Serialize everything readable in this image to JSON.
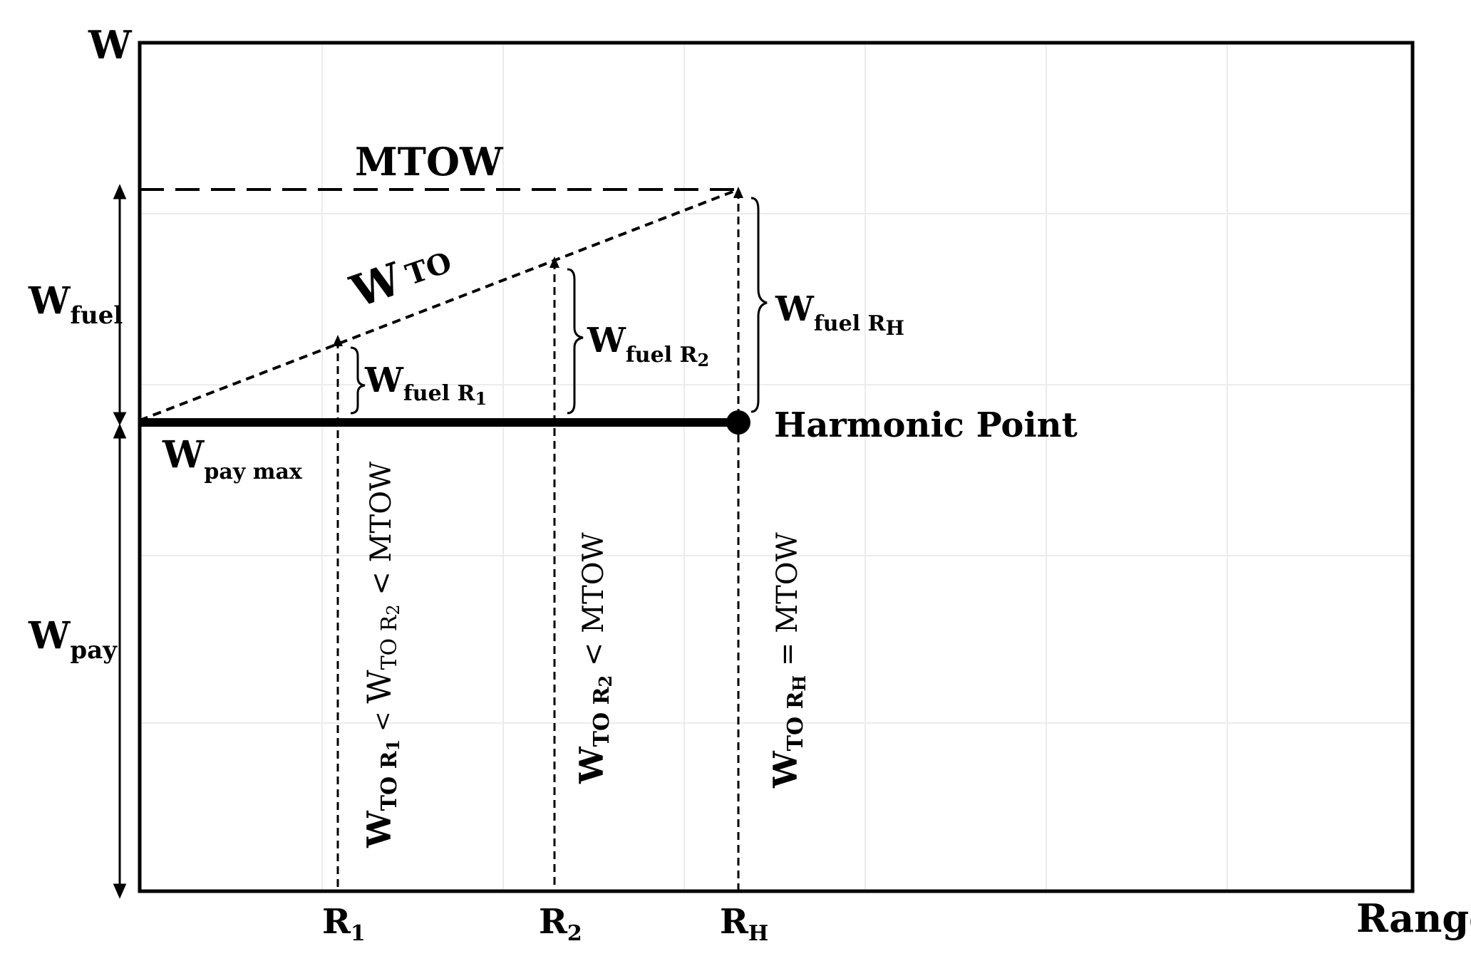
{
  "axes": {
    "y_label": "W",
    "x_label": "Range"
  },
  "lines": {
    "mtow": "MTOW",
    "wto_main": "W",
    "wto_sub": "TO"
  },
  "side_labels": {
    "fuel_main": "W",
    "fuel_sub": "fuel",
    "pay_main": "W",
    "pay_sub": "pay",
    "paymax_main": "W",
    "paymax_sub": "pay max"
  },
  "fuel_labels": {
    "r1_main": "W",
    "r1_sub": "fuel R",
    "r1_subsub": "1",
    "r2_main": "W",
    "r2_sub": "fuel R",
    "r2_subsub": "2",
    "rh_main": "W",
    "rh_sub": "fuel R",
    "rh_subsub": "H"
  },
  "harmonic_point": "Harmonic Point",
  "ticks": {
    "r1_main": "R",
    "r1_sub": "1",
    "r2_main": "R",
    "r2_sub": "2",
    "rh_main": "R",
    "rh_sub": "H"
  },
  "vertical_labels": {
    "r1": {
      "a": "W",
      "a_sub": "TO R",
      "a_subsub": "1",
      "lt1": " < ",
      "b": "W",
      "b_sub": "TO R",
      "b_subsub": "2",
      "lt2": " < MTOW"
    },
    "r2": {
      "a": "W",
      "a_sub": "TO R",
      "a_subsub": "2",
      "rel": " < MTOW"
    },
    "rh": {
      "a": "W",
      "a_sub": "TO R",
      "a_subsub": "H",
      "rel": " = MTOW"
    }
  }
}
